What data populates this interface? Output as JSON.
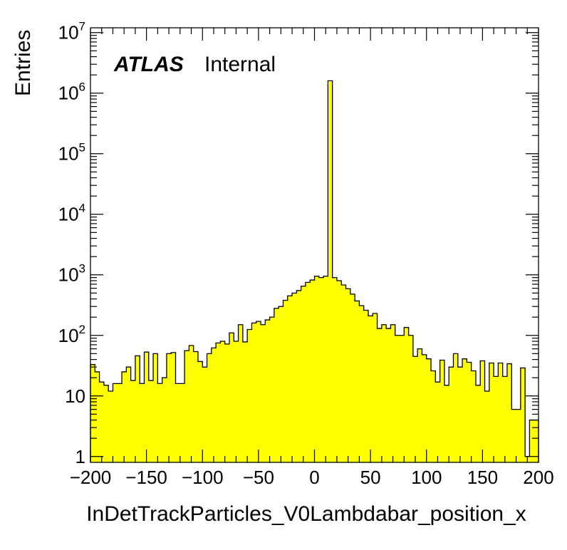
{
  "chart_data": {
    "type": "bar",
    "style": "histogram",
    "title": "",
    "xlabel": "InDetTrackParticles_V0Lambdabar_position_x",
    "ylabel": "Entries",
    "xlim": [
      -200,
      200
    ],
    "ylim": [
      0.8,
      12000000
    ],
    "yscale": "log",
    "grid": false,
    "legend": "none",
    "annotation": {
      "bold": "ATLAS",
      "normal": "Internal"
    },
    "fill_color": "#ffff00",
    "line_color": "#000000",
    "x_ticks": [
      "−200",
      "−150",
      "−100",
      "−50",
      "0",
      "50",
      "100",
      "150",
      "200"
    ],
    "x_tick_values": [
      -200,
      -150,
      -100,
      -50,
      0,
      50,
      100,
      150,
      200
    ],
    "y_ticks": [
      {
        "value": 1,
        "base": "1",
        "exp": ""
      },
      {
        "value": 10,
        "base": "10",
        "exp": ""
      },
      {
        "value": 100,
        "base": "10",
        "exp": "2"
      },
      {
        "value": 1000,
        "base": "10",
        "exp": "3"
      },
      {
        "value": 10000,
        "base": "10",
        "exp": "4"
      },
      {
        "value": 100000,
        "base": "10",
        "exp": "5"
      },
      {
        "value": 1000000,
        "base": "10",
        "exp": "6"
      },
      {
        "value": 10000000,
        "base": "10",
        "exp": "7"
      }
    ],
    "bin_width": 4,
    "x_start": -200,
    "values": [
      33,
      25,
      17,
      15,
      12,
      16,
      16,
      25,
      30,
      18,
      46,
      16,
      53,
      18,
      50,
      16,
      20,
      50,
      52,
      16,
      16,
      56,
      68,
      54,
      37,
      30,
      50,
      62,
      75,
      80,
      72,
      110,
      80,
      150,
      78,
      125,
      160,
      170,
      150,
      180,
      200,
      280,
      300,
      380,
      450,
      500,
      550,
      650,
      750,
      820,
      950,
      900,
      950,
      1600000,
      900,
      800,
      680,
      590,
      480,
      370,
      310,
      260,
      210,
      230,
      130,
      150,
      130,
      150,
      100,
      100,
      135,
      100,
      45,
      60,
      48,
      41,
      26,
      17,
      39,
      15,
      30,
      50,
      30,
      41,
      36,
      26,
      15,
      38,
      12,
      35,
      21,
      35,
      21,
      34,
      6,
      6,
      29,
      1,
      4,
      4
    ]
  }
}
